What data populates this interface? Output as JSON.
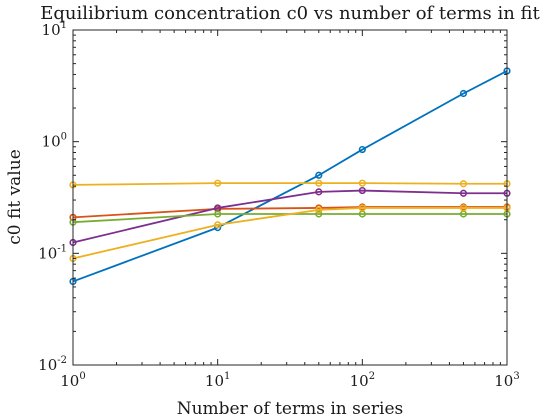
{
  "chart_data": {
    "type": "line",
    "title": "Equilibrium concentration c0 vs number of terms in fit",
    "xlabel": "Number of terms in series",
    "ylabel": "c0 fit value",
    "xscale": "log",
    "yscale": "log",
    "xlim": [
      1,
      1000
    ],
    "ylim": [
      0.01,
      10
    ],
    "grid": false,
    "legend": "none",
    "x_ticks": [
      {
        "base": "10",
        "exp": "0"
      },
      {
        "base": "10",
        "exp": "1"
      },
      {
        "base": "10",
        "exp": "2"
      },
      {
        "base": "10",
        "exp": "3"
      }
    ],
    "y_ticks": [
      {
        "base": "10",
        "exp": "-2"
      },
      {
        "base": "10",
        "exp": "-1"
      },
      {
        "base": "10",
        "exp": "0"
      },
      {
        "base": "10",
        "exp": "1"
      }
    ],
    "x": [
      1,
      10,
      50,
      100,
      500,
      1000
    ],
    "series": [
      {
        "color": "#0072BD",
        "values": [
          0.056,
          0.17,
          0.5,
          0.85,
          2.7,
          4.3
        ]
      },
      {
        "color": "#D95319",
        "values": [
          0.21,
          0.25,
          0.255,
          0.26,
          0.26,
          0.26
        ]
      },
      {
        "color": "#EDB120",
        "values": [
          0.41,
          0.425,
          0.425,
          0.425,
          0.42,
          0.42
        ]
      },
      {
        "color": "#7E2F8E",
        "values": [
          0.125,
          0.255,
          0.355,
          0.365,
          0.345,
          0.345
        ]
      },
      {
        "color": "#77AC30",
        "values": [
          0.19,
          0.225,
          0.225,
          0.225,
          0.225,
          0.225
        ]
      },
      {
        "color": "#EDB120",
        "values": [
          0.09,
          0.18,
          0.245,
          0.255,
          0.255,
          0.255
        ]
      }
    ]
  }
}
